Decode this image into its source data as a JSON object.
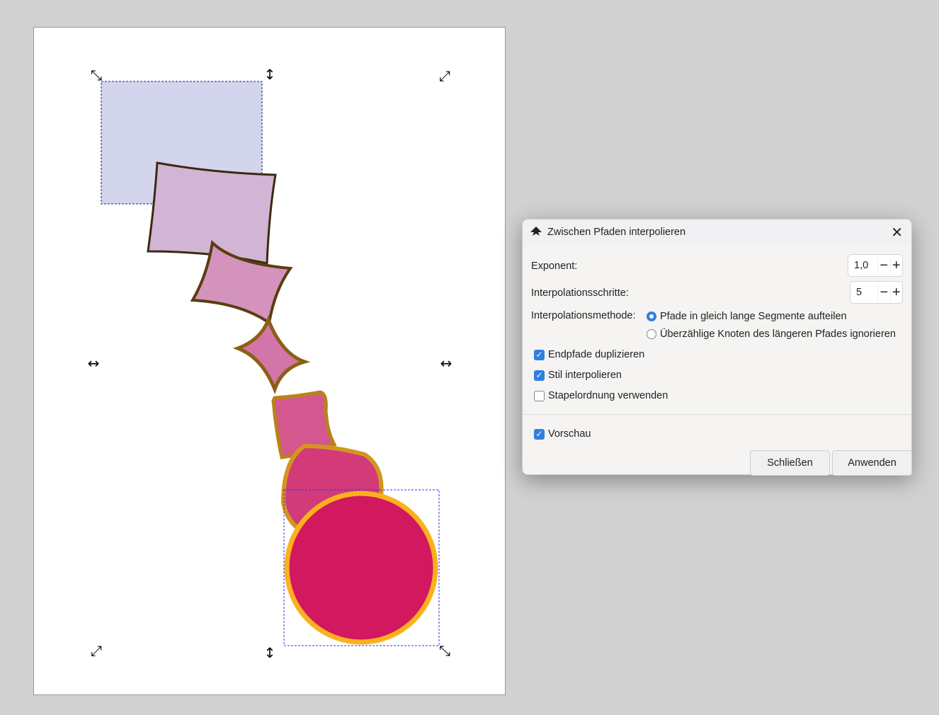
{
  "dialog": {
    "title": "Zwischen Pfaden interpolieren",
    "exponent_label": "Exponent:",
    "exponent_value": "1,0",
    "steps_label": "Interpolationsschritte:",
    "steps_value": "5",
    "method_label": "Interpolationsmethode:",
    "method_options": [
      "Pfade in gleich lange Segmente aufteilen",
      "Überzählige Knoten des längeren Pfades ignorieren"
    ],
    "method_selected": 0,
    "checkboxes": [
      {
        "label": "Endpfade duplizieren",
        "checked": true
      },
      {
        "label": "Stil interpolieren",
        "checked": true
      },
      {
        "label": "Stapelordnung verwenden",
        "checked": false
      }
    ],
    "preview": {
      "label": "Vorschau",
      "checked": true
    },
    "close_label": "Schließen",
    "apply_label": "Anwenden",
    "minus": "−",
    "plus": "+",
    "close_icon": "✕"
  },
  "colors": {
    "accent": "#2f7fe0",
    "start_fill": "#d3d5ec",
    "end_fill": "#d2185f",
    "end_stroke": "#fbb11e"
  }
}
